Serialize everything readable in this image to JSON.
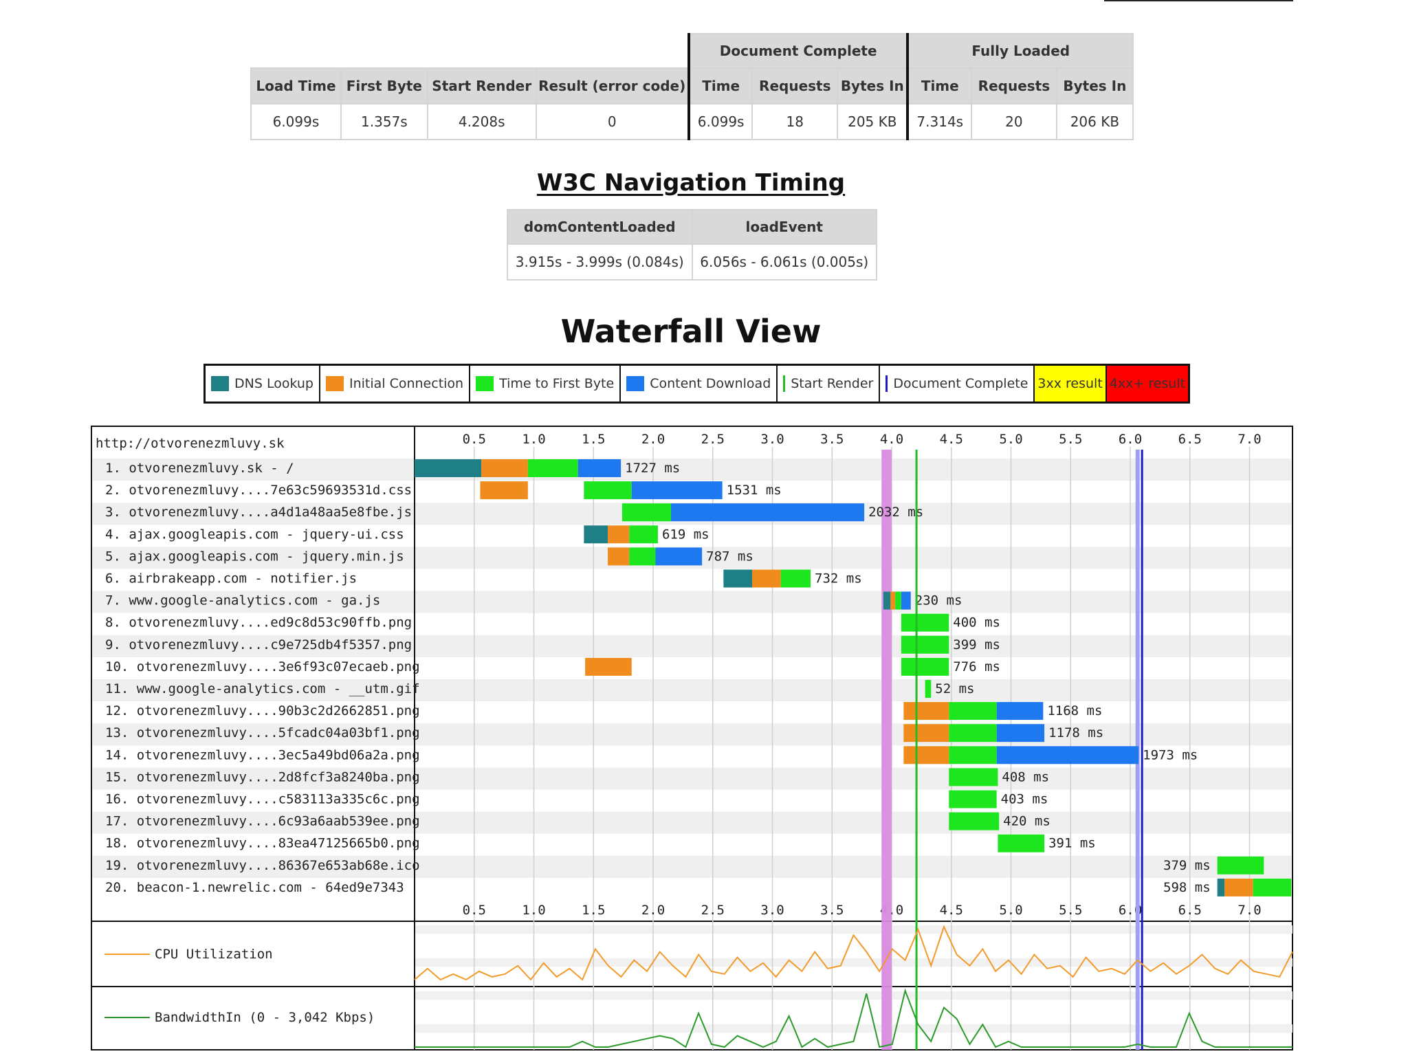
{
  "summary": {
    "group_document": "Document Complete",
    "group_fully": "Fully Loaded",
    "headers": [
      "Load Time",
      "First Byte",
      "Start Render",
      "Result (error code)",
      "Time",
      "Requests",
      "Bytes In",
      "Time",
      "Requests",
      "Bytes In"
    ],
    "values": [
      "6.099s",
      "1.357s",
      "4.208s",
      "0",
      "6.099s",
      "18",
      "205 KB",
      "7.314s",
      "20",
      "206 KB"
    ]
  },
  "nav_timing": {
    "title": "W3C Navigation Timing",
    "headers": [
      "domContentLoaded",
      "loadEvent"
    ],
    "values": [
      "3.915s - 3.999s (0.084s)",
      "6.056s - 6.061s (0.005s)"
    ]
  },
  "waterfall_title": "Waterfall View",
  "legend": {
    "dns": "DNS Lookup",
    "connect": "Initial Connection",
    "ttfb": "Time to First Byte",
    "download": "Content Download",
    "start_render": "Start Render",
    "doc_complete": "Document Complete",
    "r3xx": "3xx result",
    "r4xx": "4xx+ result"
  },
  "colors": {
    "dns": "#1f7f86",
    "connect": "#f08c1e",
    "ttfb": "#1ee61e",
    "download": "#1e78f0",
    "start_render": "#22bb22",
    "doc_complete": "#1a1acc",
    "dom_content_loaded": "#d98ae0",
    "load_event": "#a0a0f0",
    "r3xx": "#ffff00",
    "r4xx": "#ff0000",
    "cpu": "#f39a2a",
    "bandwidth": "#2a9a2a"
  },
  "chart_data": {
    "type": "waterfall",
    "page_url": "http://otvorenezmluvy.sk",
    "x_ticks": [
      "0.5",
      "1.0",
      "1.5",
      "2.0",
      "2.5",
      "3.0",
      "3.5",
      "4.0",
      "4.5",
      "5.0",
      "5.5",
      "6.0",
      "6.5",
      "7.0"
    ],
    "xlim": [
      0,
      7.35
    ],
    "unit": "s",
    "start_render": 4.208,
    "document_complete": 6.099,
    "dom_content_loaded": [
      3.915,
      3.999
    ],
    "load_event": [
      6.056,
      6.061
    ],
    "requests": [
      {
        "label": "1. otvorenezmluvy.sk - /",
        "duration": "1727 ms",
        "dns": [
          0.0,
          0.56
        ],
        "connect": [
          0.56,
          0.95
        ],
        "ttfb": [
          0.95,
          1.37
        ],
        "download": [
          1.37,
          1.73
        ]
      },
      {
        "label": "2. otvorenezmluvy....7e63c59693531d.css",
        "duration": "1531 ms",
        "connect": [
          0.55,
          0.95
        ],
        "ttfb": [
          1.42,
          1.82
        ],
        "download": [
          1.82,
          2.58
        ]
      },
      {
        "label": "3. otvorenezmluvy....a4d1a48aa5e8fbe.js",
        "duration": "2032 ms",
        "ttfb": [
          1.74,
          2.15
        ],
        "download": [
          2.15,
          3.77
        ]
      },
      {
        "label": "4. ajax.googleapis.com - jquery-ui.css",
        "duration": "619 ms",
        "dns": [
          1.42,
          1.62
        ],
        "connect": [
          1.62,
          1.8
        ],
        "ttfb": [
          1.8,
          2.04
        ]
      },
      {
        "label": "5. ajax.googleapis.com - jquery.min.js",
        "duration": "787 ms",
        "connect": [
          1.62,
          1.8
        ],
        "ttfb": [
          1.8,
          2.02
        ],
        "download": [
          2.02,
          2.41
        ]
      },
      {
        "label": "6. airbrakeapp.com - notifier.js",
        "duration": "732 ms",
        "dns": [
          2.59,
          2.83
        ],
        "connect": [
          2.83,
          3.07
        ],
        "ttfb": [
          3.07,
          3.32
        ]
      },
      {
        "label": "7. www.google-analytics.com - ga.js",
        "duration": "230 ms",
        "dns": [
          3.93,
          3.99
        ],
        "connect": [
          3.99,
          4.03
        ],
        "ttfb": [
          4.03,
          4.08
        ],
        "download": [
          4.08,
          4.16
        ]
      },
      {
        "label": "8. otvorenezmluvy....ed9c8d53c90ffb.png",
        "duration": "400 ms",
        "ttfb": [
          4.08,
          4.48
        ]
      },
      {
        "label": "9. otvorenezmluvy....c9e725db4f5357.png",
        "duration": "399 ms",
        "ttfb": [
          4.08,
          4.48
        ]
      },
      {
        "label": "10. otvorenezmluvy....3e6f93c07ecaeb.png",
        "duration": "776 ms",
        "connect": [
          1.43,
          1.82
        ],
        "ttfb": [
          4.08,
          4.48
        ]
      },
      {
        "label": "11. www.google-analytics.com - __utm.gif",
        "duration": "52 ms",
        "ttfb": [
          4.28,
          4.33
        ]
      },
      {
        "label": "12. otvorenezmluvy....90b3c2d2662851.png",
        "duration": "1168 ms",
        "connect": [
          4.1,
          4.48
        ],
        "ttfb": [
          4.48,
          4.88
        ],
        "download": [
          4.88,
          5.27
        ]
      },
      {
        "label": "13. otvorenezmluvy....5fcadc04a03bf1.png",
        "duration": "1178 ms",
        "connect": [
          4.1,
          4.48
        ],
        "ttfb": [
          4.48,
          4.88
        ],
        "download": [
          4.88,
          5.28
        ]
      },
      {
        "label": "14. otvorenezmluvy....3ec5a49bd06a2a.png",
        "duration": "1973 ms",
        "connect": [
          4.1,
          4.48
        ],
        "ttfb": [
          4.48,
          4.88
        ],
        "download": [
          4.88,
          6.07
        ]
      },
      {
        "label": "15. otvorenezmluvy....2d8fcf3a8240ba.png",
        "duration": "408 ms",
        "ttfb": [
          4.48,
          4.89
        ]
      },
      {
        "label": "16. otvorenezmluvy....c583113a335c6c.png",
        "duration": "403 ms",
        "ttfb": [
          4.48,
          4.88
        ]
      },
      {
        "label": "17. otvorenezmluvy....6c93a6aab539ee.png",
        "duration": "420 ms",
        "ttfb": [
          4.48,
          4.9
        ]
      },
      {
        "label": "18. otvorenezmluvy....83ea47125665b0.png",
        "duration": "391 ms",
        "ttfb": [
          4.89,
          5.28
        ]
      },
      {
        "label": "19. otvorenezmluvy....86367e653ab68e.ico",
        "duration": "379 ms",
        "ttfb": [
          6.73,
          7.12
        ],
        "label_left": true
      },
      {
        "label": "20. beacon-1.newrelic.com - 64ed9e7343",
        "duration": "598 ms",
        "dns": [
          6.73,
          6.79
        ],
        "connect": [
          6.79,
          7.03
        ],
        "ttfb": [
          7.03,
          7.35
        ],
        "label_left": true
      }
    ],
    "cpu": {
      "label": "CPU Utilization",
      "values": [
        0.05,
        0.25,
        0.05,
        0.15,
        0.05,
        0.2,
        0.1,
        0.15,
        0.3,
        0.05,
        0.35,
        0.1,
        0.25,
        0.05,
        0.6,
        0.3,
        0.1,
        0.4,
        0.2,
        0.55,
        0.3,
        0.1,
        0.5,
        0.2,
        0.15,
        0.45,
        0.2,
        0.35,
        0.1,
        0.4,
        0.2,
        0.55,
        0.25,
        0.3,
        0.85,
        0.55,
        0.2,
        0.6,
        0.4,
        0.95,
        0.3,
        1.0,
        0.5,
        0.3,
        0.6,
        0.2,
        0.4,
        0.15,
        0.5,
        0.25,
        0.3,
        0.1,
        0.45,
        0.2,
        0.25,
        0.15,
        0.4,
        0.2,
        0.35,
        0.15,
        0.3,
        0.5,
        0.25,
        0.15,
        0.4,
        0.2,
        0.15,
        0.1,
        0.55
      ]
    },
    "bandwidth": {
      "label": "BandwidthIn (0 - 3,042 Kbps)",
      "values": [
        0,
        0,
        0,
        0,
        0,
        0,
        0,
        0,
        0,
        0,
        0,
        0,
        0,
        0.1,
        0,
        0,
        0.05,
        0.1,
        0.15,
        0.2,
        0.15,
        0,
        0.6,
        0.05,
        0,
        0.2,
        0.1,
        0,
        0.1,
        0.55,
        0,
        0.15,
        0,
        0.05,
        0.1,
        0.95,
        0,
        0.05,
        1.0,
        0.4,
        0.1,
        0.7,
        0.5,
        0.05,
        0.4,
        0,
        0.1,
        0,
        0,
        0,
        0,
        0,
        0,
        0,
        0,
        0,
        0.05,
        0,
        0,
        0,
        0.6,
        0.1,
        0,
        0,
        0,
        0,
        0,
        0,
        0
      ]
    }
  }
}
